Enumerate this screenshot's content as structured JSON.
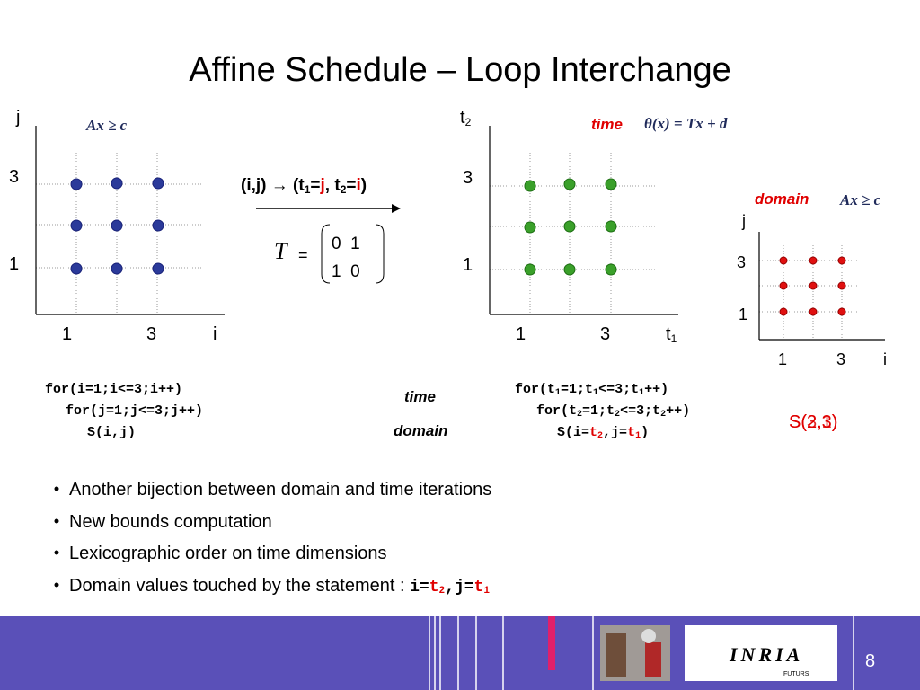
{
  "title": "Affine Schedule – Loop Interchange",
  "domain_plot": {
    "formula": "Ax ≥ c",
    "y_label": "j",
    "x_label": "i",
    "y_ticks": [
      "3",
      "1"
    ],
    "x_ticks": [
      "1",
      "3"
    ]
  },
  "transform": {
    "mapping": [
      "(i,j) ",
      "→",
      " (t",
      "1",
      "=",
      "j",
      ", t",
      "2",
      "=",
      "i",
      ")"
    ],
    "matrix_name": "T",
    "equals": "=",
    "matrix_rows": [
      "0  1",
      "1  0"
    ]
  },
  "time_plot": {
    "label": "time",
    "formula": "θ(x) = Tx + d",
    "y_label": [
      "t",
      "2"
    ],
    "x_label": [
      "t",
      "1"
    ],
    "y_ticks": [
      "3",
      "1"
    ],
    "x_ticks": [
      "1",
      "3"
    ]
  },
  "small_plot": {
    "label": "domain",
    "formula": "Ax ≥ c",
    "y_label": "j",
    "x_label": "i",
    "y_ticks": [
      "3",
      "1"
    ],
    "x_ticks": [
      "1",
      "3"
    ],
    "statements": [
      "S(2,3)",
      "S(3,1)"
    ]
  },
  "code_left": [
    "for(i=1;i<=3;i++)",
    "for(j=1;j<=3;j++)",
    "S(i,j)"
  ],
  "middle_labels": [
    "time",
    "domain"
  ],
  "code_right": [
    [
      "for(t",
      "1",
      "=1;t",
      "1",
      "<=3;t",
      "1",
      "++)"
    ],
    [
      "for(t",
      "2",
      "=1;t",
      "2",
      "<=3;t",
      "2",
      "++)"
    ],
    [
      "S(i=",
      "t",
      "2",
      ",j=",
      "t",
      "1",
      ")"
    ]
  ],
  "bullets": [
    "Another bijection between domain and time iterations",
    "New bounds computation",
    "Lexicographic order on time dimensions",
    "Domain values touched by the statement : "
  ],
  "bullet_code": [
    "i=",
    "t",
    "2",
    ",j=",
    "t",
    "1"
  ],
  "footer": {
    "logo": "INRIA",
    "logo_sub": "FUTURS",
    "page": "8"
  }
}
